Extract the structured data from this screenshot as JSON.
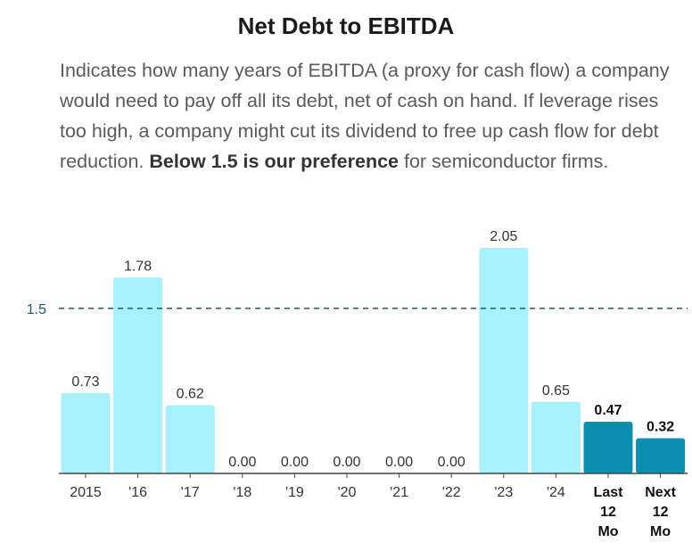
{
  "title": "Net Debt to EBITDA",
  "description": {
    "text_before": "Indicates how many years of EBITDA (a proxy for cash flow) a company would need to pay off all its debt, net of cash on hand. If leverage rises too high, a company might cut its dividend to free up cash flow for debt reduction. ",
    "bold": "Below 1.5 is our preference",
    "text_after": " for semiconductor firms."
  },
  "colors": {
    "historical_bar": "#a6f1fb",
    "estimate_bar": "#0a8fae",
    "reference_line": "#1d5a72",
    "axis": "#444444"
  },
  "chart_data": {
    "type": "bar",
    "categories": [
      "2015",
      "'16",
      "'17",
      "'18",
      "'19",
      "'20",
      "'21",
      "'22",
      "'23",
      "'24",
      "Last 12 Mo",
      "Next 12 Mo"
    ],
    "category_lines": [
      [
        "2015"
      ],
      [
        "'16"
      ],
      [
        "'17"
      ],
      [
        "'18"
      ],
      [
        "'19"
      ],
      [
        "'20"
      ],
      [
        "'21"
      ],
      [
        "'22"
      ],
      [
        "'23"
      ],
      [
        "'24"
      ],
      [
        "Last",
        "12",
        "Mo"
      ],
      [
        "Next",
        "12",
        "Mo"
      ]
    ],
    "values": [
      0.73,
      1.78,
      0.62,
      0.0,
      0.0,
      0.0,
      0.0,
      0.0,
      2.05,
      0.65,
      0.47,
      0.32
    ],
    "value_labels": [
      "0.73",
      "1.78",
      "0.62",
      "0.00",
      "0.00",
      "0.00",
      "0.00",
      "0.00",
      "2.05",
      "0.65",
      "0.47",
      "0.32"
    ],
    "highlighted": [
      false,
      false,
      false,
      false,
      false,
      false,
      false,
      false,
      false,
      false,
      true,
      true
    ],
    "reference_line": {
      "value": 1.5,
      "label": "1.5",
      "style": "dashed"
    },
    "ylim": [
      0,
      2.05
    ],
    "grid": false,
    "legend": "none"
  }
}
